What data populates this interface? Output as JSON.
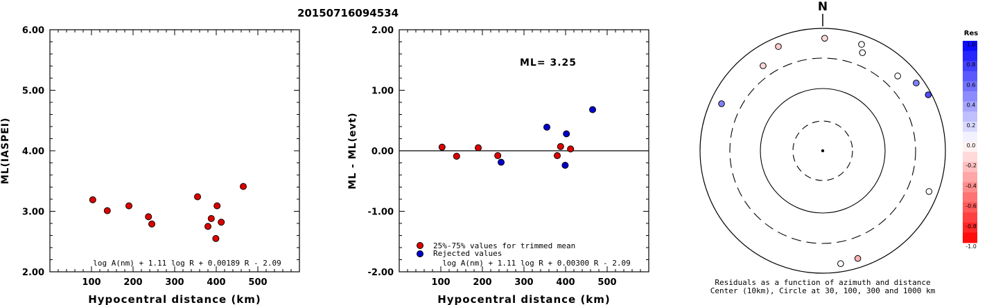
{
  "page": {
    "title": "20150716094534"
  },
  "chart_data": [
    {
      "type": "scatter",
      "xlabel": "Hypocentral distance (km)",
      "ylabel": "ML(IASPEI)",
      "xlim": [
        0,
        600
      ],
      "ylim": [
        2.0,
        6.0
      ],
      "x_ticks": [
        "100",
        "200",
        "300",
        "400",
        "500"
      ],
      "y_ticks": [
        "2.00",
        "3.00",
        "4.00",
        "5.00",
        "6.00"
      ],
      "formula": "log A(nm) + 1.11 log R + 0.00189 R - 2.09",
      "point_color": "#dd0000",
      "points": [
        {
          "x": 103,
          "y": 3.19
        },
        {
          "x": 138,
          "y": 3.01
        },
        {
          "x": 190,
          "y": 3.09
        },
        {
          "x": 237,
          "y": 2.91
        },
        {
          "x": 245,
          "y": 2.79
        },
        {
          "x": 355,
          "y": 3.24
        },
        {
          "x": 380,
          "y": 2.75
        },
        {
          "x": 388,
          "y": 2.88
        },
        {
          "x": 399,
          "y": 2.55
        },
        {
          "x": 402,
          "y": 3.09
        },
        {
          "x": 412,
          "y": 2.82
        },
        {
          "x": 465,
          "y": 3.41
        }
      ]
    },
    {
      "type": "scatter",
      "xlabel": "Hypocentral distance (km)",
      "ylabel": "ML - ML(evt)",
      "xlim": [
        0,
        600
      ],
      "ylim": [
        -2.0,
        2.0
      ],
      "x_ticks": [
        "100",
        "200",
        "300",
        "400",
        "500"
      ],
      "y_ticks": [
        "-2.00",
        "-1.00",
        "0.00",
        "1.00",
        "2.00"
      ],
      "annotation": "ML= 3.25",
      "formula": "log A(nm) + 1.11 log R + 0.00300 R - 2.09",
      "legend": [
        {
          "label": "25%-75% values for trimmed mean",
          "color": "#dd0000"
        },
        {
          "label": "Rejected values",
          "color": "#0000cc"
        }
      ],
      "series": [
        {
          "name": "25%-75% values for trimmed mean",
          "color": "#dd0000",
          "points": [
            {
              "x": 103,
              "y": 0.06
            },
            {
              "x": 138,
              "y": -0.09
            },
            {
              "x": 190,
              "y": 0.05
            },
            {
              "x": 237,
              "y": -0.08
            },
            {
              "x": 380,
              "y": -0.08
            },
            {
              "x": 388,
              "y": 0.07
            },
            {
              "x": 412,
              "y": 0.03
            }
          ]
        },
        {
          "name": "Rejected values",
          "color": "#0000cc",
          "points": [
            {
              "x": 245,
              "y": -0.19
            },
            {
              "x": 355,
              "y": 0.39
            },
            {
              "x": 399,
              "y": -0.24
            },
            {
              "x": 402,
              "y": 0.28
            },
            {
              "x": 465,
              "y": 0.68
            }
          ]
        }
      ]
    },
    {
      "type": "scatter",
      "subtype": "polar-residual-map",
      "north_label": "N",
      "caption_line1": "Residuals as a function of azimuth and distance",
      "caption_line2": "Center (10km), Circle at 30, 100, 300 and 1000 km",
      "points": [
        {
          "azimuth": 295,
          "distance_km": 640,
          "residual": 0.5
        },
        {
          "azimuth": 325,
          "distance_km": 470,
          "residual": -0.15
        },
        {
          "azimuth": 337,
          "distance_km": 690,
          "residual": -0.2
        },
        {
          "azimuth": 1,
          "distance_km": 670,
          "residual": -0.15
        },
        {
          "azimuth": 20,
          "distance_km": 690,
          "residual": 0.0
        },
        {
          "azimuth": 22,
          "distance_km": 510,
          "residual": 0.0
        },
        {
          "azimuth": 45,
          "distance_km": 510,
          "residual": 0.0
        },
        {
          "azimuth": 54,
          "distance_km": 750,
          "residual": 0.5
        },
        {
          "azimuth": 62,
          "distance_km": 880,
          "residual": 0.7
        },
        {
          "azimuth": 111,
          "distance_km": 700,
          "residual": 0.0
        },
        {
          "azimuth": 162,
          "distance_km": 690,
          "residual": -0.3
        },
        {
          "azimuth": 171,
          "distance_km": 720,
          "residual": 0.0
        }
      ],
      "colorbar": {
        "title": "Res",
        "ticks": [
          "1.0",
          "0.8",
          "0.6",
          "0.4",
          "0.2",
          "0.0",
          "-0.2",
          "-0.4",
          "-0.6",
          "-0.8",
          "-1.0"
        ]
      }
    }
  ]
}
